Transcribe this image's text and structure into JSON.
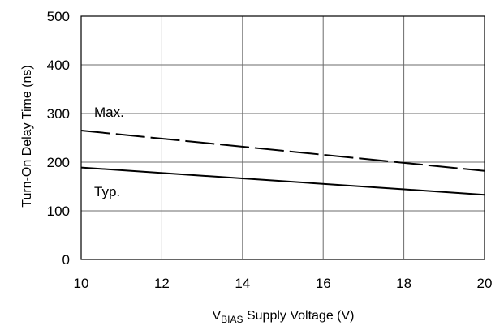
{
  "chart_data": {
    "type": "line",
    "title": "",
    "xlabel_main": "V",
    "xlabel_sub": "BIAS",
    "xlabel_rest": " Supply Voltage (V)",
    "ylabel": "Turn-On Delay Time (ns)",
    "xlim": [
      10,
      20
    ],
    "ylim": [
      0,
      500
    ],
    "xticks": [
      "10",
      "12",
      "14",
      "16",
      "18",
      "20"
    ],
    "yticks": [
      "0",
      "100",
      "200",
      "300",
      "400",
      "500"
    ],
    "grid": true,
    "series": [
      {
        "name": "Max.",
        "style": "dashed",
        "x": [
          10,
          20
        ],
        "y": [
          265,
          182
        ]
      },
      {
        "name": "Typ.",
        "style": "solid",
        "x": [
          10,
          20
        ],
        "y": [
          189,
          133
        ]
      }
    ]
  }
}
